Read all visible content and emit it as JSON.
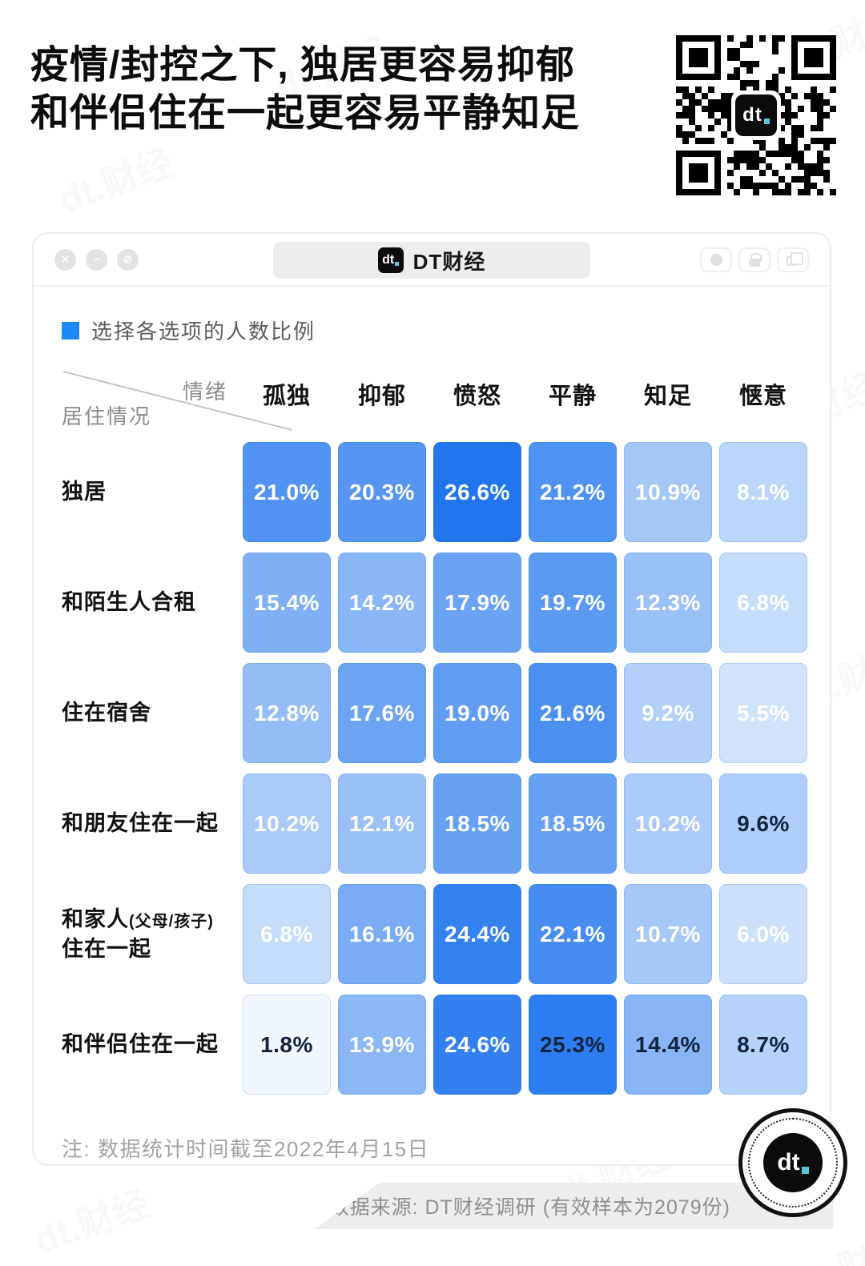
{
  "title": {
    "line1": "疫情/封控之下, 独居更容易抑郁",
    "line2": "和伴侣住在一起更容易平静知足"
  },
  "window": {
    "title": "DT财经",
    "logo_text": "dt",
    "controls_left": {
      "close": "✕",
      "minimize": "−",
      "block": "⊘"
    }
  },
  "legend": {
    "label": "选择各选项的人数比例",
    "swatch_color": "#1E88F7"
  },
  "note": "注: 数据统计时间截至2022年4月15日",
  "source": "数据来源: DT财经调研 (有效样本为2079份)",
  "watermark": "dt.财经",
  "brand": {
    "logo_text": "dt",
    "accent_teal": "#58C6D8"
  },
  "chart_data": {
    "type": "heatmap",
    "title": "选择各选项的人数比例",
    "col_axis_title": "情绪",
    "row_axis_title": "居住情况",
    "columns": [
      "孤独",
      "抑郁",
      "愤怒",
      "平静",
      "知足",
      "惬意"
    ],
    "rows": [
      {
        "label": "独居",
        "values": [
          21.0,
          20.3,
          26.6,
          21.2,
          10.9,
          8.1
        ],
        "dark_text_cols": []
      },
      {
        "label": "和陌生人合租",
        "values": [
          15.4,
          14.2,
          17.9,
          19.7,
          12.3,
          6.8
        ],
        "dark_text_cols": []
      },
      {
        "label": "住在宿舍",
        "values": [
          12.8,
          17.6,
          19.0,
          21.6,
          9.2,
          5.5
        ],
        "dark_text_cols": []
      },
      {
        "label": "和朋友住在一起",
        "values": [
          10.2,
          12.1,
          18.5,
          18.5,
          10.2,
          9.6
        ],
        "dark_text_cols": [
          5
        ]
      },
      {
        "label": "和家人",
        "label_small": "(父母/孩子)",
        "label_line2": "住在一起",
        "values": [
          6.8,
          16.1,
          24.4,
          22.1,
          10.7,
          6.0
        ],
        "dark_text_cols": []
      },
      {
        "label": "和伴侣住在一起",
        "values": [
          1.8,
          13.9,
          24.6,
          25.3,
          14.4,
          8.7
        ],
        "dark_text_cols": [
          0,
          3,
          4,
          5
        ]
      }
    ],
    "value_format": "percent_1dp",
    "color_scale": {
      "domain": [
        0,
        27
      ],
      "light": "#FFFFFF",
      "dark": "#1E74EE"
    },
    "dark_text_color": "#13233F",
    "legend_position": "top-left",
    "grid": false
  }
}
